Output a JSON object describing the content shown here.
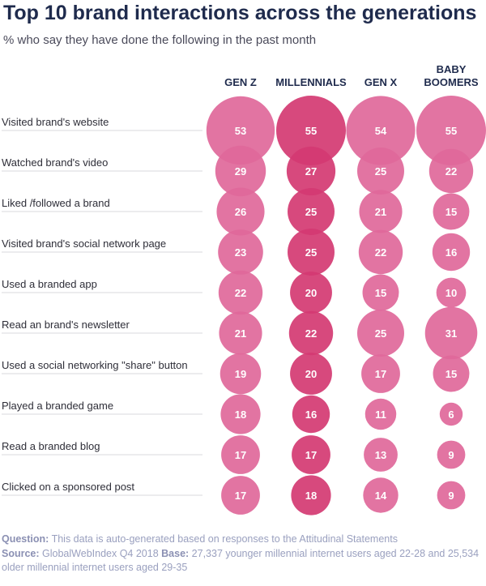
{
  "chart_data": {
    "type": "bubble",
    "title": "Top 10 brand interactions across the generations",
    "subtitle": "% who say they have done the following in the past month",
    "categories": [
      "Visited brand's website",
      "Watched brand's video",
      "Liked /followed a brand",
      "Visited brand's social network page",
      "Used a branded app",
      "Read an brand's newsletter",
      "Used a social networking \"share\" button",
      "Played a branded game",
      "Read a branded blog",
      "Clicked on a sponsored post"
    ],
    "series": [
      {
        "name": "GEN Z",
        "name_lines": [
          "GEN Z"
        ],
        "color": "#e0689a",
        "values": [
          53,
          29,
          26,
          23,
          22,
          21,
          19,
          18,
          17,
          17
        ]
      },
      {
        "name": "MILLENNIALS",
        "name_lines": [
          "MILLENNIALS"
        ],
        "color": "#d43a72",
        "values": [
          55,
          27,
          25,
          25,
          20,
          22,
          20,
          16,
          17,
          18
        ]
      },
      {
        "name": "GEN X",
        "name_lines": [
          "GEN X"
        ],
        "color": "#e0689a",
        "values": [
          54,
          25,
          21,
          22,
          15,
          25,
          17,
          11,
          13,
          14
        ]
      },
      {
        "name": "BABY BOOMERS",
        "name_lines": [
          "BABY",
          "BOOMERS"
        ],
        "color": "#e0689a",
        "values": [
          55,
          22,
          15,
          16,
          10,
          31,
          15,
          6,
          9,
          9
        ]
      }
    ]
  },
  "footer": {
    "question_label": "Question:",
    "question_text": "This data is auto-generated based on responses to the Attitudinal Statements",
    "source_label": "Source:",
    "source_text": "GlobalWebIndex Q4 2018",
    "base_label": "Base:",
    "base_text": "27,337 younger millennial internet users aged 22-28 and 25,534 older millennial internet users aged 29-35"
  }
}
